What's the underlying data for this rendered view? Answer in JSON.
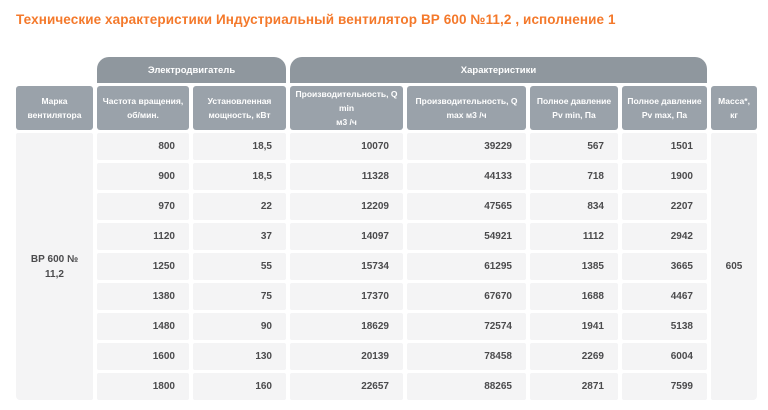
{
  "page_title": "Технические характеристики Индустриальный вентилятор ВР 600 №11,2 , исполнение 1",
  "colors": {
    "title_orange": "#f4792b",
    "group_tab_gray": "#8f979e",
    "column_header_gray": "#9aa2aa",
    "body_cell_gray": "#f4f4f5",
    "body_text": "#4b4b4d"
  },
  "table": {
    "group_headers": {
      "motor": "Электродвигатель",
      "characteristics": "Характеристики"
    },
    "columns": {
      "brand": {
        "line1": "Марка",
        "line2": "вентилятора"
      },
      "rpm": {
        "line1": "Частота вращения,",
        "line2": "об/мин."
      },
      "power": {
        "line1": "Установленная",
        "line2": "мощность, кВт"
      },
      "qmin": {
        "line1": "Производительность, Q min",
        "line2": "м3 /ч"
      },
      "qmax": {
        "line1": "Производительность, Q",
        "line2": "max м3 /ч"
      },
      "pvmin": {
        "line1": "Полное давление",
        "line2": "Pv min, Па"
      },
      "pvmax": {
        "line1": "Полное давление",
        "line2": "Pv max, Па"
      },
      "mass": {
        "line1": "Масса*,",
        "line2": "кг"
      }
    },
    "brand_value": "ВР 600 № 11,2",
    "mass_value": "605",
    "rows": [
      {
        "rpm": "800",
        "power": "18,5",
        "qmin": "10070",
        "qmax": "39229",
        "pvmin": "567",
        "pvmax": "1501"
      },
      {
        "rpm": "900",
        "power": "18,5",
        "qmin": "11328",
        "qmax": "44133",
        "pvmin": "718",
        "pvmax": "1900"
      },
      {
        "rpm": "970",
        "power": "22",
        "qmin": "12209",
        "qmax": "47565",
        "pvmin": "834",
        "pvmax": "2207"
      },
      {
        "rpm": "1120",
        "power": "37",
        "qmin": "14097",
        "qmax": "54921",
        "pvmin": "1112",
        "pvmax": "2942"
      },
      {
        "rpm": "1250",
        "power": "55",
        "qmin": "15734",
        "qmax": "61295",
        "pvmin": "1385",
        "pvmax": "3665"
      },
      {
        "rpm": "1380",
        "power": "75",
        "qmin": "17370",
        "qmax": "67670",
        "pvmin": "1688",
        "pvmax": "4467"
      },
      {
        "rpm": "1480",
        "power": "90",
        "qmin": "18629",
        "qmax": "72574",
        "pvmin": "1941",
        "pvmax": "5138"
      },
      {
        "rpm": "1600",
        "power": "130",
        "qmin": "20139",
        "qmax": "78458",
        "pvmin": "2269",
        "pvmax": "6004"
      },
      {
        "rpm": "1800",
        "power": "160",
        "qmin": "22657",
        "qmax": "88265",
        "pvmin": "2871",
        "pvmax": "7599"
      }
    ]
  }
}
